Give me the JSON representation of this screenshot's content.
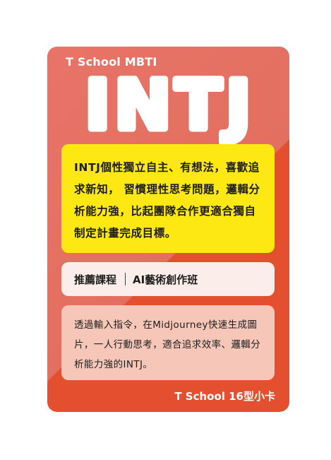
{
  "card": {
    "brand_top": "T School MBTI",
    "type_title": "INTJ",
    "description": "INTJ個性獨立自主、有想法，喜歡追求新知， 習慣理性思考問題，邏輯分析能力強，比起團隊合作更適合獨自制定計畫完成目標。",
    "course_label": "推薦課程",
    "course_name": "AI藝術創作班",
    "note": "透過輸入指令，在Midjourney快速生成圖片，一人行動思考，適合追求效率、邏輯分析能力強的INTJ。",
    "brand_bottom": "T School 16型小卡"
  },
  "colors": {
    "card_light": "#e87468",
    "card_dark": "#e4502f",
    "highlight": "#fde814",
    "course_bg": "#fbeeea",
    "note_bg": "#f6c7b8"
  }
}
